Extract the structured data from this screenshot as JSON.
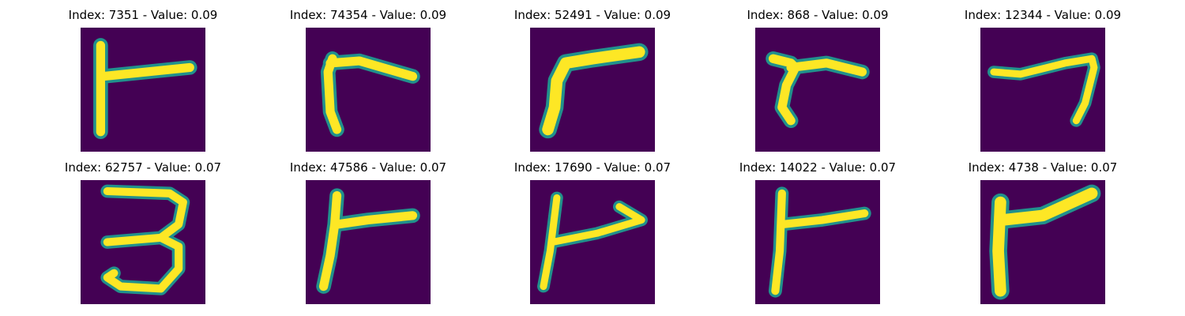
{
  "colors": {
    "background": "#440154",
    "stroke": "#fde725",
    "edge": "#21918c"
  },
  "panels": [
    {
      "title": "Index: 7351 - Value: 0.09",
      "glyph": "shape resembling 'r' / 'Γ' with long vertical stroke"
    },
    {
      "title": "Index: 74354 - Value: 0.09",
      "glyph": "bent 'r' shape"
    },
    {
      "title": "Index: 52491 - Value: 0.09",
      "glyph": "thick 'r' with slanted bar"
    },
    {
      "title": "Index: 868 - Value: 0.09",
      "glyph": "short 'r' shape"
    },
    {
      "title": "Index: 12344 - Value: 0.09",
      "glyph": "'7'-like hook"
    },
    {
      "title": "Index: 62757 - Value: 0.07",
      "glyph": "digit '3'"
    },
    {
      "title": "Index: 47586 - Value: 0.07",
      "glyph": "'r' with forked top"
    },
    {
      "title": "Index: 17690 - Value: 0.07",
      "glyph": "'r' with arrow-like bar"
    },
    {
      "title": "Index: 14022 - Value: 0.07",
      "glyph": "tall 'r' shape"
    },
    {
      "title": "Index: 4738 - Value: 0.07",
      "glyph": "thick 'r' with slanted bar"
    }
  ]
}
